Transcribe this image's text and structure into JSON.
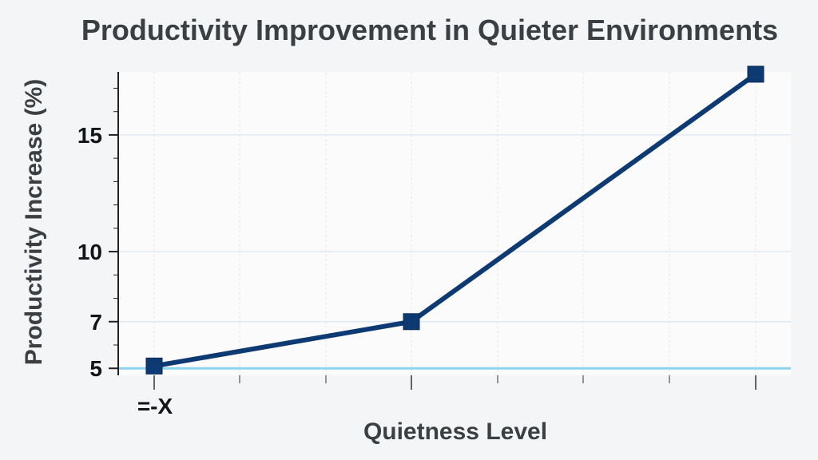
{
  "chart_data": {
    "type": "line",
    "title": "Productivity Improvement in Quieter Environments",
    "xlabel": "Quietness Level",
    "ylabel": "Productivity Increase (%)",
    "x_tick_labels": [
      "=-X"
    ],
    "y_ticks": [
      5,
      7,
      10,
      15
    ],
    "ylim": [
      4.7,
      17.7
    ],
    "grid": true,
    "legend": "none",
    "series": [
      {
        "values": [
          5.1,
          7,
          17.6
        ],
        "color": "#0e3a73"
      }
    ],
    "baseline": {
      "value": 5,
      "color": "#8ed3ee"
    }
  }
}
